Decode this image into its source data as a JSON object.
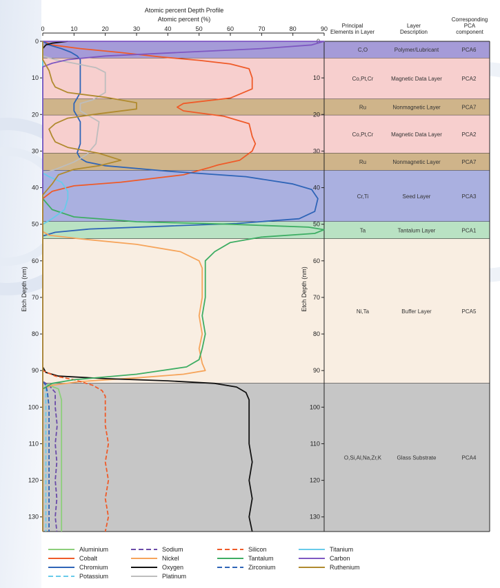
{
  "chart_data": {
    "type": "line",
    "title": "Atomic percent Depth Profile",
    "xlabel": "Atomic percent (%)",
    "ylabel": "Etch Depth (nm)",
    "xlim": [
      0,
      90
    ],
    "ylim": [
      0,
      134
    ],
    "x_ticks": [
      0,
      10,
      20,
      30,
      40,
      50,
      60,
      70,
      80,
      90
    ],
    "y_ticks": [
      0,
      10,
      20,
      30,
      40,
      50,
      60,
      70,
      80,
      90,
      100,
      110,
      120,
      130
    ],
    "table_headers": [
      "Principal Elements in Layer",
      "Layer Description",
      "Corresponding PCA component"
    ],
    "layers": [
      {
        "elements": "C,O",
        "description": "Polymer/Lubricant",
        "pca": "PCA6",
        "from": 0,
        "to": 4.6,
        "color": "#a59bd8"
      },
      {
        "elements": "Co,Pt,Cr",
        "description": "Magnetic Data Layer",
        "pca": "PCA2",
        "from": 4.6,
        "to": 15.8,
        "color": "#f7cfce"
      },
      {
        "elements": "Ru",
        "description": "Nonmagnetic Layer",
        "pca": "PCA7",
        "from": 15.8,
        "to": 20.2,
        "color": "#cfb48a"
      },
      {
        "elements": "Co,Pt,Cr",
        "description": "Magnetic Data Layer",
        "pca": "PCA2",
        "from": 20.2,
        "to": 30.6,
        "color": "#f7cfce"
      },
      {
        "elements": "Ru",
        "description": "Nonmagnetic Layer",
        "pca": "PCA7",
        "from": 30.6,
        "to": 35.3,
        "color": "#cfb48a"
      },
      {
        "elements": "Cr,Ti",
        "description": "Seed Layer",
        "pca": "PCA3",
        "from": 35.3,
        "to": 49.3,
        "color": "#aab0e0"
      },
      {
        "elements": "Ta",
        "description": "Tantalum Layer",
        "pca": "PCA1",
        "from": 49.3,
        "to": 54.0,
        "color": "#b9e2c3"
      },
      {
        "elements": "Ni,Ta",
        "description": "Buffer Layer",
        "pca": "PCA5",
        "from": 54.0,
        "to": 93.5,
        "color": "#f9eee2"
      },
      {
        "elements": "O,Si,Al,Na,Zr,K",
        "description": "Glass Substrate",
        "pca": "PCA4",
        "from": 93.5,
        "to": 134,
        "color": "#c6c6c6"
      }
    ],
    "series": [
      {
        "name": "Aluminium",
        "color": "#8ccf7a",
        "dash": "solid",
        "points": [
          [
            0,
            0
          ],
          [
            0,
            93
          ],
          [
            2,
            94
          ],
          [
            5,
            95
          ],
          [
            6,
            98
          ],
          [
            6,
            134
          ]
        ]
      },
      {
        "name": "Cobalt",
        "color": "#ef5a28",
        "dash": "solid",
        "points": [
          [
            0,
            0
          ],
          [
            3,
            1
          ],
          [
            12,
            2
          ],
          [
            24,
            3
          ],
          [
            38,
            4.3
          ],
          [
            50,
            5.2
          ],
          [
            60,
            6.2
          ],
          [
            66,
            7.5
          ],
          [
            67,
            10
          ],
          [
            67,
            13
          ],
          [
            60,
            15.5
          ],
          [
            45,
            17
          ],
          [
            43,
            18
          ],
          [
            45,
            19
          ],
          [
            58,
            20.5
          ],
          [
            66,
            22.5
          ],
          [
            67,
            26
          ],
          [
            68,
            28
          ],
          [
            67,
            30
          ],
          [
            63,
            32.5
          ],
          [
            56,
            33.8
          ],
          [
            53,
            34.6
          ],
          [
            45,
            36.5
          ],
          [
            25,
            38.5
          ],
          [
            10,
            39.5
          ],
          [
            3,
            41
          ],
          [
            0,
            43
          ],
          [
            0,
            134
          ]
        ]
      },
      {
        "name": "Chromium",
        "color": "#2e64b7",
        "dash": "solid",
        "points": [
          [
            0,
            0
          ],
          [
            2,
            1
          ],
          [
            6,
            2
          ],
          [
            9,
            3
          ],
          [
            11,
            4
          ],
          [
            12,
            5
          ],
          [
            12,
            14
          ],
          [
            11,
            15.5
          ],
          [
            10,
            17
          ],
          [
            10,
            19
          ],
          [
            11,
            20.5
          ],
          [
            12,
            22
          ],
          [
            12,
            28
          ],
          [
            11,
            30.5
          ],
          [
            12,
            32
          ],
          [
            14,
            33
          ],
          [
            20,
            34
          ],
          [
            40,
            35.5
          ],
          [
            65,
            37
          ],
          [
            80,
            39
          ],
          [
            86,
            40.5
          ],
          [
            88,
            43
          ],
          [
            87,
            46.5
          ],
          [
            82,
            48.5
          ],
          [
            62,
            49.8
          ],
          [
            40,
            50.5
          ],
          [
            15,
            51.3
          ],
          [
            4,
            52.2
          ],
          [
            0,
            53.2
          ],
          [
            0,
            134
          ]
        ]
      },
      {
        "name": "Potassium",
        "color": "#67cbea",
        "dash": "dash",
        "points": [
          [
            0,
            0
          ],
          [
            0,
            93
          ],
          [
            1,
            94
          ],
          [
            1,
            134
          ]
        ]
      },
      {
        "name": "Sodium",
        "color": "#6a4ba8",
        "dash": "dash",
        "points": [
          [
            0,
            0
          ],
          [
            0,
            93
          ],
          [
            2,
            94
          ],
          [
            4,
            96
          ],
          [
            4,
            100
          ],
          [
            4.6,
            105
          ],
          [
            4,
            110
          ],
          [
            4.5,
            115
          ],
          [
            4,
            120
          ],
          [
            4.5,
            125
          ],
          [
            4,
            130
          ],
          [
            4.5,
            134
          ]
        ]
      },
      {
        "name": "Nickel",
        "color": "#f6a45a",
        "dash": "solid",
        "points": [
          [
            0,
            0
          ],
          [
            0,
            52
          ],
          [
            2,
            53
          ],
          [
            12,
            54
          ],
          [
            30,
            55.5
          ],
          [
            44,
            57.5
          ],
          [
            50,
            60
          ],
          [
            51,
            62
          ],
          [
            51,
            70
          ],
          [
            50,
            75
          ],
          [
            51,
            80
          ],
          [
            50,
            84
          ],
          [
            51,
            88
          ],
          [
            52,
            90
          ],
          [
            45,
            91
          ],
          [
            30,
            92
          ],
          [
            12,
            93
          ],
          [
            3,
            94
          ],
          [
            0,
            95
          ],
          [
            0,
            134
          ]
        ]
      },
      {
        "name": "Oxygen",
        "color": "#111111",
        "dash": "solid",
        "points": [
          [
            8,
            0
          ],
          [
            3,
            0.5
          ],
          [
            1,
            1
          ],
          [
            0,
            2
          ],
          [
            0,
            89
          ],
          [
            1,
            90.5
          ],
          [
            5,
            91.5
          ],
          [
            20,
            92.2
          ],
          [
            40,
            92.8
          ],
          [
            55,
            93.5
          ],
          [
            62,
            94.5
          ],
          [
            65,
            96
          ],
          [
            66,
            98
          ],
          [
            66,
            110
          ],
          [
            67,
            115
          ],
          [
            66,
            120
          ],
          [
            67,
            125
          ],
          [
            66,
            130
          ],
          [
            67,
            134
          ]
        ]
      },
      {
        "name": "Platinum",
        "color": "#bdbdbd",
        "dash": "solid",
        "points": [
          [
            0,
            0
          ],
          [
            0,
            4
          ],
          [
            4,
            5
          ],
          [
            10,
            6
          ],
          [
            17,
            7.2
          ],
          [
            20,
            8.5
          ],
          [
            20,
            14
          ],
          [
            16,
            16
          ],
          [
            12,
            17
          ],
          [
            12,
            19
          ],
          [
            15,
            20.5
          ],
          [
            18,
            22
          ],
          [
            17,
            28
          ],
          [
            14,
            31
          ],
          [
            10,
            33
          ],
          [
            4,
            35
          ],
          [
            0,
            36
          ],
          [
            0,
            134
          ]
        ]
      },
      {
        "name": "Silicon",
        "color": "#ef5a28",
        "dash": "dash",
        "points": [
          [
            0,
            0
          ],
          [
            0,
            90
          ],
          [
            4,
            91.5
          ],
          [
            10,
            92.5
          ],
          [
            16,
            94
          ],
          [
            19,
            95.5
          ],
          [
            20,
            97
          ],
          [
            20,
            105
          ],
          [
            21,
            110
          ],
          [
            20,
            115
          ],
          [
            21,
            120
          ],
          [
            20,
            125
          ],
          [
            21,
            130
          ],
          [
            20,
            134
          ]
        ]
      },
      {
        "name": "Tantalum",
        "color": "#3dad63",
        "dash": "solid",
        "points": [
          [
            0,
            0
          ],
          [
            0,
            43
          ],
          [
            3,
            46
          ],
          [
            10,
            48
          ],
          [
            30,
            49.3
          ],
          [
            60,
            50
          ],
          [
            85,
            50.8
          ],
          [
            90,
            51.5
          ],
          [
            87,
            52.5
          ],
          [
            70,
            53.5
          ],
          [
            60,
            55
          ],
          [
            55,
            57.5
          ],
          [
            52,
            60
          ],
          [
            52,
            70
          ],
          [
            51,
            75
          ],
          [
            52,
            80
          ],
          [
            51,
            84
          ],
          [
            50,
            87
          ],
          [
            46,
            89
          ],
          [
            30,
            91
          ],
          [
            10,
            92.5
          ],
          [
            3,
            93.5
          ],
          [
            0,
            95
          ],
          [
            0,
            134
          ]
        ]
      },
      {
        "name": "Zirconium",
        "color": "#2e64b7",
        "dash": "dash",
        "points": [
          [
            0,
            0
          ],
          [
            0,
            93
          ],
          [
            1,
            94
          ],
          [
            1.5,
            96
          ],
          [
            2,
            100
          ],
          [
            2,
            134
          ]
        ]
      },
      {
        "name": "Titanium",
        "color": "#67cbea",
        "dash": "solid",
        "points": [
          [
            0,
            0
          ],
          [
            0,
            36
          ],
          [
            2,
            37
          ],
          [
            6,
            38.5
          ],
          [
            8,
            41
          ],
          [
            8,
            43
          ],
          [
            7,
            46
          ],
          [
            3,
            48.5
          ],
          [
            0,
            50
          ],
          [
            0,
            134
          ]
        ]
      },
      {
        "name": "Carbon",
        "color": "#7e57c2",
        "dash": "solid",
        "points": [
          [
            0,
            0
          ],
          [
            90,
            0
          ],
          [
            86,
            1
          ],
          [
            70,
            2
          ],
          [
            45,
            3
          ],
          [
            20,
            4
          ],
          [
            8,
            5
          ],
          [
            3,
            6
          ],
          [
            0,
            7
          ],
          [
            0,
            134
          ]
        ]
      },
      {
        "name": "Ruthenium",
        "color": "#b08a2e",
        "dash": "solid",
        "points": [
          [
            0,
            0
          ],
          [
            0,
            5
          ],
          [
            2,
            8
          ],
          [
            3,
            11
          ],
          [
            4,
            12.5
          ],
          [
            8,
            14
          ],
          [
            20,
            15.3
          ],
          [
            30,
            16.8
          ],
          [
            30,
            18.5
          ],
          [
            18,
            19.8
          ],
          [
            8,
            21
          ],
          [
            4,
            22.5
          ],
          [
            2,
            24
          ],
          [
            3,
            26
          ],
          [
            4,
            27.5
          ],
          [
            8,
            29
          ],
          [
            18,
            30.6
          ],
          [
            25,
            32.5
          ],
          [
            18,
            34
          ],
          [
            10,
            35
          ],
          [
            5,
            36.5
          ],
          [
            3,
            39
          ],
          [
            0,
            42
          ],
          [
            0,
            134
          ]
        ]
      }
    ],
    "legend": {
      "placement": "bottom",
      "columns": [
        [
          "Aluminium",
          "Cobalt",
          "Chromium",
          "Potassium"
        ],
        [
          "Sodium",
          "Nickel",
          "Oxygen",
          "Platinum"
        ],
        [
          "Silicon",
          "Tantalum",
          "Zirconium"
        ],
        [
          "Titanium",
          "Carbon",
          "Ruthenium"
        ]
      ]
    }
  }
}
